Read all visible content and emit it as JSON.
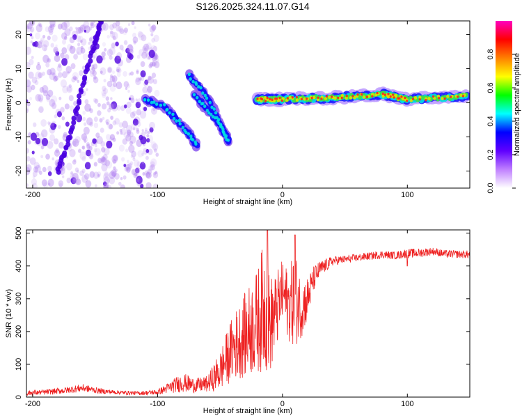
{
  "title": "S126.2025.324.11.07.G14",
  "chart_data": [
    {
      "type": "heatmap",
      "xlabel": "Height of straight line (km)",
      "ylabel": "Frequency (Hz)",
      "xlim": [
        -205,
        150
      ],
      "ylim": [
        -25,
        24
      ],
      "x_ticks": [
        -200,
        -100,
        0,
        100
      ],
      "y_ticks": [
        -20,
        -10,
        0,
        10,
        20
      ],
      "colorbar": {
        "label": "Normalized spectral amplitude",
        "range": [
          0,
          1
        ],
        "ticks": [
          "0.0",
          "0.2",
          "0.4",
          "0.6",
          "0.8"
        ],
        "colors": [
          "#ffffff",
          "#c080ff",
          "#6000ff",
          "#0000ff",
          "#00ffff",
          "#00ff00",
          "#ffff00",
          "#ff8000",
          "#ff0000",
          "#ff00c0"
        ]
      },
      "features": [
        {
          "name": "noisy region",
          "x_range": [
            -205,
            -100
          ],
          "y_range": [
            -25,
            24
          ]
        },
        {
          "name": "steep streak",
          "points": [
            [
              -180,
              -20
            ],
            [
              -170,
              -10
            ],
            [
              -160,
              5
            ],
            [
              -150,
              18
            ],
            [
              -145,
              24
            ]
          ]
        },
        {
          "name": "descending curve 1",
          "points": [
            [
              -110,
              1
            ],
            [
              -95,
              -1
            ],
            [
              -85,
              -5
            ],
            [
              -75,
              -9
            ],
            [
              -68,
              -13
            ]
          ]
        },
        {
          "name": "descending curve 2",
          "points": [
            [
              -75,
              8
            ],
            [
              -65,
              4
            ],
            [
              -55,
              -2
            ],
            [
              -48,
              -8
            ],
            [
              -42,
              -12
            ]
          ]
        },
        {
          "name": "descending curve 3",
          "points": [
            [
              -70,
              2
            ],
            [
              -60,
              -2
            ],
            [
              -50,
              -6
            ],
            [
              -45,
              -10
            ]
          ]
        },
        {
          "name": "carrier line",
          "points": [
            [
              -20,
              1
            ],
            [
              0,
              1
            ],
            [
              40,
              1.5
            ],
            [
              80,
              2.5
            ],
            [
              100,
              1
            ],
            [
              150,
              2
            ]
          ]
        }
      ]
    },
    {
      "type": "line",
      "xlabel": "Height of straight line (km)",
      "ylabel": "SNR (10 * v/v)",
      "xlim": [
        -205,
        150
      ],
      "ylim": [
        0,
        510
      ],
      "x_ticks": [
        -200,
        -100,
        0,
        100
      ],
      "y_ticks": [
        0,
        100,
        200,
        300,
        400,
        500
      ],
      "color": "#ee2222",
      "series": [
        {
          "name": "SNR",
          "x": [
            -205,
            -190,
            -175,
            -160,
            -145,
            -130,
            -115,
            -100,
            -90,
            -80,
            -70,
            -60,
            -50,
            -40,
            -30,
            -20,
            -15,
            -10,
            -5,
            0,
            5,
            10,
            15,
            20,
            25,
            30,
            40,
            50,
            60,
            70,
            80,
            90,
            100,
            110,
            120,
            130,
            140,
            150
          ],
          "values": [
            12,
            15,
            20,
            28,
            18,
            14,
            12,
            15,
            30,
            45,
            35,
            40,
            80,
            150,
            190,
            230,
            280,
            220,
            260,
            320,
            280,
            300,
            270,
            300,
            360,
            390,
            415,
            420,
            425,
            430,
            435,
            432,
            438,
            440,
            445,
            437,
            436,
            435
          ],
          "spread": [
            8,
            8,
            10,
            12,
            8,
            6,
            6,
            8,
            18,
            30,
            22,
            25,
            60,
            100,
            130,
            160,
            200,
            150,
            120,
            100,
            110,
            150,
            90,
            70,
            40,
            25,
            15,
            12,
            12,
            12,
            12,
            12,
            14,
            14,
            12,
            12,
            12,
            12
          ]
        }
      ],
      "peaks": [
        [
          -12,
          510
        ],
        [
          -5,
          330
        ],
        [
          10,
          495
        ],
        [
          100,
          400
        ]
      ]
    }
  ]
}
